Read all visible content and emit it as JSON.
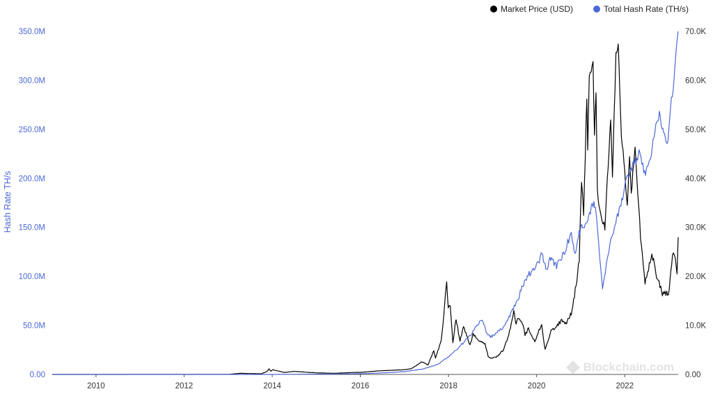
{
  "legend": {
    "items": [
      {
        "label": "Market Price (USD)",
        "color": "#000000"
      },
      {
        "label": "Total Hash Rate (TH/s)",
        "color": "#4b68d6"
      }
    ]
  },
  "watermark": "Blockchain.com",
  "chart_data": {
    "type": "line",
    "x_axis": {
      "type": "date",
      "range": [
        "2009-01-03",
        "2023-03-20"
      ],
      "ticks": [
        "2010",
        "2012",
        "2014",
        "2016",
        "2018",
        "2020",
        "2022"
      ]
    },
    "y_left": {
      "label": "Hash Rate TH/s",
      "range": [
        0,
        350000000
      ],
      "ticks": [
        "0.00",
        "50.0M",
        "100.0M",
        "150.0M",
        "200.0M",
        "250.0M",
        "300.0M",
        "350.0M"
      ],
      "color": "#4b68d6"
    },
    "y_right": {
      "label": "",
      "range": [
        0,
        70000
      ],
      "ticks": [
        "0.00",
        "10.0K",
        "20.0K",
        "30.0K",
        "40.0K",
        "50.0K",
        "60.0K",
        "70.0K"
      ]
    },
    "grid": false,
    "legend_position": "top-right",
    "series": [
      {
        "name": "Market Price (USD)",
        "axis": "right",
        "color": "#000000",
        "points": [
          [
            "2009-01-03",
            0
          ],
          [
            "2010-07-01",
            0.07
          ],
          [
            "2011-06-08",
            30
          ],
          [
            "2012-01-01",
            5
          ],
          [
            "2013-01-01",
            13
          ],
          [
            "2013-04-10",
            230
          ],
          [
            "2013-10-01",
            125
          ],
          [
            "2013-11-20",
            600
          ],
          [
            "2013-12-04",
            1150
          ],
          [
            "2013-12-20",
            650
          ],
          [
            "2014-01-05",
            950
          ],
          [
            "2014-04-10",
            400
          ],
          [
            "2014-07-01",
            620
          ],
          [
            "2014-12-31",
            320
          ],
          [
            "2015-06-01",
            230
          ],
          [
            "2015-11-04",
            400
          ],
          [
            "2016-01-01",
            430
          ],
          [
            "2016-06-16",
            750
          ],
          [
            "2016-12-31",
            960
          ],
          [
            "2017-03-01",
            1200
          ],
          [
            "2017-05-25",
            2600
          ],
          [
            "2017-07-15",
            1950
          ],
          [
            "2017-09-01",
            4800
          ],
          [
            "2017-09-15",
            3300
          ],
          [
            "2017-11-01",
            6700
          ],
          [
            "2017-12-07",
            16000
          ],
          [
            "2017-12-17",
            19000
          ],
          [
            "2017-12-30",
            13500
          ],
          [
            "2018-01-15",
            14000
          ],
          [
            "2018-02-06",
            6500
          ],
          [
            "2018-03-05",
            11500
          ],
          [
            "2018-04-06",
            6600
          ],
          [
            "2018-05-05",
            9800
          ],
          [
            "2018-06-28",
            5900
          ],
          [
            "2018-07-25",
            8300
          ],
          [
            "2018-09-01",
            7100
          ],
          [
            "2018-10-31",
            6300
          ],
          [
            "2018-11-25",
            3800
          ],
          [
            "2018-12-15",
            3300
          ],
          [
            "2019-02-01",
            3500
          ],
          [
            "2019-04-02",
            5000
          ],
          [
            "2019-05-15",
            8000
          ],
          [
            "2019-06-26",
            12800
          ],
          [
            "2019-07-15",
            10200
          ],
          [
            "2019-08-06",
            11800
          ],
          [
            "2019-09-10",
            10300
          ],
          [
            "2019-09-27",
            8100
          ],
          [
            "2019-10-26",
            9300
          ],
          [
            "2019-12-17",
            6700
          ],
          [
            "2020-02-12",
            10300
          ],
          [
            "2020-03-12",
            5000
          ],
          [
            "2020-05-01",
            8800
          ],
          [
            "2020-06-01",
            9600
          ],
          [
            "2020-07-28",
            11000
          ],
          [
            "2020-09-05",
            10300
          ],
          [
            "2020-10-21",
            12900
          ],
          [
            "2020-11-30",
            19300
          ],
          [
            "2020-12-20",
            23500
          ],
          [
            "2021-01-08",
            40000
          ],
          [
            "2021-01-25",
            32000
          ],
          [
            "2021-02-21",
            57000
          ],
          [
            "2021-02-28",
            45000
          ],
          [
            "2021-03-13",
            61000
          ],
          [
            "2021-04-13",
            63500
          ],
          [
            "2021-04-25",
            49000
          ],
          [
            "2021-05-08",
            58000
          ],
          [
            "2021-05-19",
            37000
          ],
          [
            "2021-06-22",
            32000
          ],
          [
            "2021-07-20",
            30000
          ],
          [
            "2021-09-06",
            52000
          ],
          [
            "2021-09-21",
            41000
          ],
          [
            "2021-10-20",
            65000
          ],
          [
            "2021-11-08",
            67500
          ],
          [
            "2021-12-04",
            49000
          ],
          [
            "2022-01-22",
            35000
          ],
          [
            "2022-02-10",
            44000
          ],
          [
            "2022-02-24",
            37000
          ],
          [
            "2022-03-28",
            47000
          ],
          [
            "2022-05-12",
            28000
          ],
          [
            "2022-06-18",
            19000
          ],
          [
            "2022-08-14",
            24500
          ],
          [
            "2022-09-30",
            19500
          ],
          [
            "2022-11-09",
            16500
          ],
          [
            "2022-12-30",
            16500
          ],
          [
            "2023-01-25",
            23000
          ],
          [
            "2023-02-16",
            25000
          ],
          [
            "2023-03-10",
            20500
          ],
          [
            "2023-03-20",
            28000
          ]
        ]
      },
      {
        "name": "Total Hash Rate (TH/s)",
        "axis": "left",
        "color": "#4b68d6",
        "points": [
          [
            "2009-01-03",
            0
          ],
          [
            "2014-01-01",
            10000
          ],
          [
            "2015-01-01",
            300000
          ],
          [
            "2016-01-01",
            750000
          ],
          [
            "2016-07-01",
            1500000
          ],
          [
            "2017-01-01",
            2800000
          ],
          [
            "2017-06-01",
            5500000
          ],
          [
            "2017-10-01",
            10000000
          ],
          [
            "2018-01-01",
            18000000
          ],
          [
            "2018-04-01",
            28000000
          ],
          [
            "2018-07-01",
            40000000
          ],
          [
            "2018-09-01",
            52000000
          ],
          [
            "2018-10-15",
            55000000
          ],
          [
            "2018-11-10",
            42000000
          ],
          [
            "2018-12-15",
            38000000
          ],
          [
            "2019-02-01",
            42000000
          ],
          [
            "2019-04-01",
            48000000
          ],
          [
            "2019-06-01",
            62000000
          ],
          [
            "2019-07-15",
            72000000
          ],
          [
            "2019-09-01",
            88000000
          ],
          [
            "2019-10-01",
            95000000
          ],
          [
            "2019-11-15",
            105000000
          ],
          [
            "2020-01-01",
            110000000
          ],
          [
            "2020-02-15",
            125000000
          ],
          [
            "2020-03-25",
            105000000
          ],
          [
            "2020-04-20",
            120000000
          ],
          [
            "2020-06-15",
            110000000
          ],
          [
            "2020-09-01",
            130000000
          ],
          [
            "2020-10-15",
            142000000
          ],
          [
            "2020-11-15",
            125000000
          ],
          [
            "2021-01-01",
            150000000
          ],
          [
            "2021-02-15",
            155000000
          ],
          [
            "2021-04-20",
            175000000
          ],
          [
            "2021-05-15",
            160000000
          ],
          [
            "2021-06-15",
            110000000
          ],
          [
            "2021-07-01",
            85000000
          ],
          [
            "2021-08-01",
            115000000
          ],
          [
            "2021-09-15",
            140000000
          ],
          [
            "2021-11-01",
            160000000
          ],
          [
            "2021-12-15",
            180000000
          ],
          [
            "2022-01-15",
            200000000
          ],
          [
            "2022-03-01",
            210000000
          ],
          [
            "2022-05-01",
            225000000
          ],
          [
            "2022-06-15",
            205000000
          ],
          [
            "2022-08-01",
            220000000
          ],
          [
            "2022-09-01",
            245000000
          ],
          [
            "2022-10-15",
            265000000
          ],
          [
            "2022-11-20",
            245000000
          ],
          [
            "2022-12-25",
            235000000
          ],
          [
            "2023-01-15",
            275000000
          ],
          [
            "2023-02-15",
            300000000
          ],
          [
            "2023-03-01",
            330000000
          ],
          [
            "2023-03-20",
            350000000
          ]
        ]
      }
    ]
  }
}
